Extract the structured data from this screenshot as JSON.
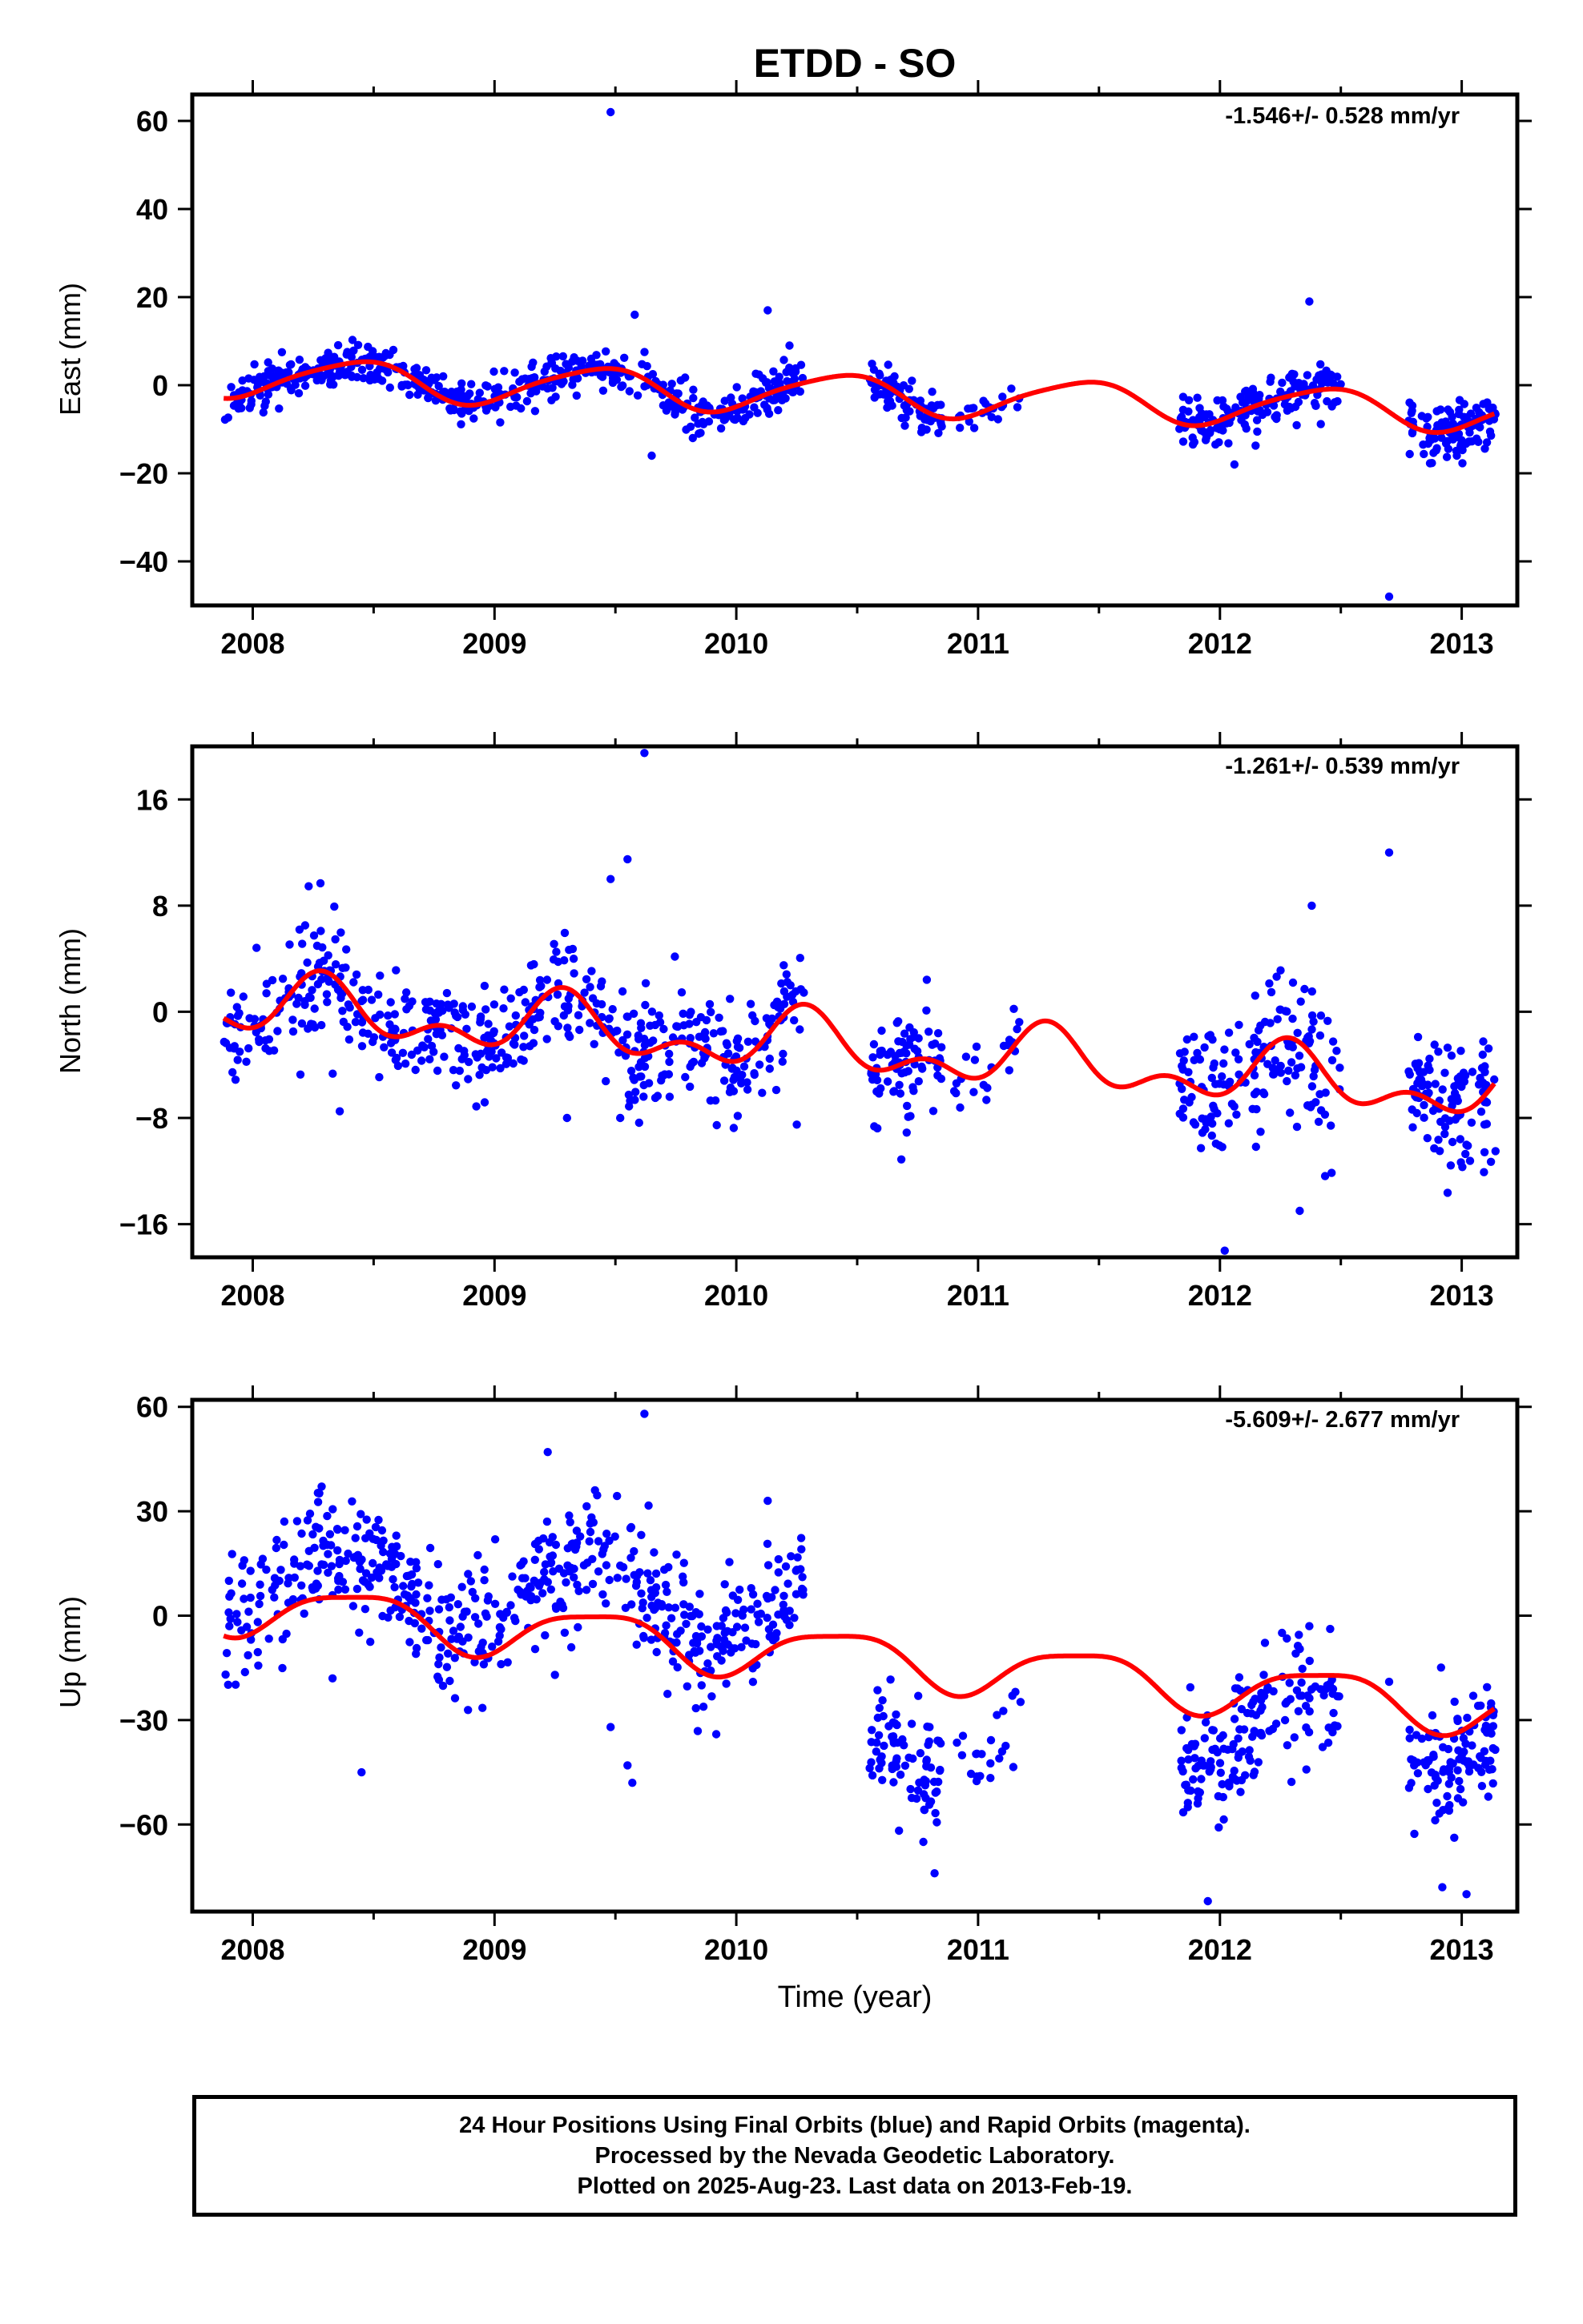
{
  "title": "ETDD - SO",
  "colors": {
    "final_orbits": "#0000ff",
    "model": "#ff0000",
    "axes": "#000000"
  },
  "caption": {
    "line1": "24 Hour Positions Using Final Orbits (blue) and Rapid Orbits (magenta).",
    "line2": "Processed by the Nevada Geodetic Laboratory.",
    "line3": "Plotted on 2025-Aug-23. Last data on 2013-Feb-19."
  },
  "chart_data": [
    {
      "type": "scatter",
      "component": "east",
      "ylabel": "East (mm)",
      "xlabel": "",
      "rate_label": "-1.546+/- 0.528 mm/yr",
      "xlim": [
        2007.75,
        2013.23
      ],
      "ylim": [
        -50,
        66
      ],
      "xticks": [
        2008,
        2009,
        2010,
        2011,
        2012,
        2013
      ],
      "xticklabels": [
        "2008",
        "2009",
        "2010",
        "2011",
        "2012",
        "2013"
      ],
      "yticks": [
        -40,
        -20,
        0,
        20,
        40,
        60
      ],
      "yticklabels": [
        "−40",
        "−20",
        "0",
        "20",
        "40",
        "60"
      ],
      "segments": [
        {
          "start": 2007.88,
          "end": 2010.28,
          "amp": 3.5,
          "noise": 2.4,
          "n": 520
        },
        {
          "start": 2010.55,
          "end": 2010.85,
          "amp": 3.5,
          "noise": 2.4,
          "n": 80
        },
        {
          "start": 2010.9,
          "end": 2011.18,
          "amp": 2.0,
          "noise": 2.0,
          "n": 22
        },
        {
          "start": 2011.83,
          "end": 2012.5,
          "amp": 3.5,
          "noise": 3.0,
          "n": 160
        },
        {
          "start": 2012.78,
          "end": 2013.14,
          "amp": 3.0,
          "noise": 3.0,
          "n": 110
        }
      ],
      "outliers": [
        [
          2009.48,
          62
        ],
        [
          2009.58,
          16
        ],
        [
          2009.65,
          -16
        ],
        [
          2009.82,
          -12
        ],
        [
          2010.13,
          17
        ],
        [
          2010.22,
          9
        ],
        [
          2012.06,
          -18
        ],
        [
          2012.37,
          19
        ],
        [
          2012.7,
          -48
        ],
        [
          2012.98,
          -16
        ]
      ],
      "model": {
        "intercept": 1.8,
        "slope": -1.546,
        "ref": 2008.0,
        "a1": 2.1,
        "b1": -3.9,
        "a2": 0.7,
        "b2": 0.3
      }
    },
    {
      "type": "scatter",
      "component": "north",
      "ylabel": "North (mm)",
      "xlabel": "",
      "rate_label": "-1.261+/- 0.539 mm/yr",
      "xlim": [
        2007.75,
        2013.23
      ],
      "ylim": [
        -18.5,
        20
      ],
      "xticks": [
        2008,
        2009,
        2010,
        2011,
        2012,
        2013
      ],
      "xticklabels": [
        "2008",
        "2009",
        "2010",
        "2011",
        "2012",
        "2013"
      ],
      "yticks": [
        -16,
        -8,
        0,
        8,
        16
      ],
      "yticklabels": [
        "−16",
        "−8",
        "0",
        "8",
        "16"
      ],
      "segments": [
        {
          "start": 2007.88,
          "end": 2010.28,
          "amp": 2.5,
          "noise": 2.1,
          "n": 520
        },
        {
          "start": 2010.55,
          "end": 2010.85,
          "amp": 2.5,
          "noise": 2.0,
          "n": 80
        },
        {
          "start": 2010.9,
          "end": 2011.18,
          "amp": 2.0,
          "noise": 1.6,
          "n": 22
        },
        {
          "start": 2011.83,
          "end": 2012.5,
          "amp": 3.0,
          "noise": 2.6,
          "n": 160
        },
        {
          "start": 2012.78,
          "end": 2013.14,
          "amp": 2.5,
          "noise": 2.4,
          "n": 110
        }
      ],
      "outliers": [
        [
          2009.62,
          19.5
        ],
        [
          2009.55,
          11.5
        ],
        [
          2009.48,
          10
        ],
        [
          2009.52,
          -8
        ],
        [
          2008.36,
          -7.5
        ],
        [
          2009.3,
          -8
        ],
        [
          2010.25,
          -8.5
        ],
        [
          2012.02,
          -18
        ],
        [
          2012.38,
          8
        ],
        [
          2012.7,
          12
        ],
        [
          2012.33,
          -15
        ],
        [
          2013.14,
          -10.5
        ]
      ],
      "model": {
        "intercept": 0.4,
        "slope": -1.261,
        "ref": 2008.0,
        "a1": 1.7,
        "b1": -0.4,
        "a2": -0.5,
        "b2": -1.2
      }
    },
    {
      "type": "scatter",
      "component": "up",
      "ylabel": "Up (mm)",
      "xlabel": "Time (year)",
      "rate_label": "-5.609+/- 2.677 mm/yr",
      "xlim": [
        2007.75,
        2013.23
      ],
      "ylim": [
        -85,
        62
      ],
      "xticks": [
        2008,
        2009,
        2010,
        2011,
        2012,
        2013
      ],
      "xticklabels": [
        "2008",
        "2009",
        "2010",
        "2011",
        "2012",
        "2013"
      ],
      "yticks": [
        -60,
        -30,
        0,
        30,
        60
      ],
      "yticklabels": [
        "−60",
        "−30",
        "0",
        "30",
        "60"
      ],
      "segments": [
        {
          "start": 2007.88,
          "end": 2010.28,
          "amp": 8.0,
          "noise": 9.0,
          "offset": 8,
          "n": 560
        },
        {
          "start": 2010.55,
          "end": 2010.85,
          "amp": 4.0,
          "noise": 9.0,
          "offset": -32,
          "n": 80
        },
        {
          "start": 2010.9,
          "end": 2011.18,
          "amp": 3.0,
          "noise": 6.0,
          "offset": -25,
          "n": 22
        },
        {
          "start": 2011.83,
          "end": 2012.5,
          "amp": 6.0,
          "noise": 10.0,
          "offset": -22,
          "n": 160
        },
        {
          "start": 2012.78,
          "end": 2013.14,
          "amp": 4.0,
          "noise": 9.0,
          "offset": -22,
          "n": 110
        }
      ],
      "outliers": [
        [
          2009.22,
          47
        ],
        [
          2009.62,
          58
        ],
        [
          2010.13,
          33
        ],
        [
          2008.45,
          -45
        ],
        [
          2009.48,
          -32
        ],
        [
          2009.55,
          -43
        ],
        [
          2009.57,
          -48
        ],
        [
          2009.25,
          -17
        ],
        [
          2008.33,
          -18
        ],
        [
          2010.82,
          -74
        ],
        [
          2011.95,
          -82
        ],
        [
          2012.37,
          -3
        ],
        [
          2012.92,
          -78
        ],
        [
          2013.02,
          -80
        ],
        [
          2012.7,
          -19
        ]
      ],
      "model": {
        "intercept": 2.2,
        "slope": -5.609,
        "ref": 2008.0,
        "a1": 3.2,
        "b1": -6.5,
        "a2": 1.7,
        "b2": -0.7
      }
    }
  ]
}
